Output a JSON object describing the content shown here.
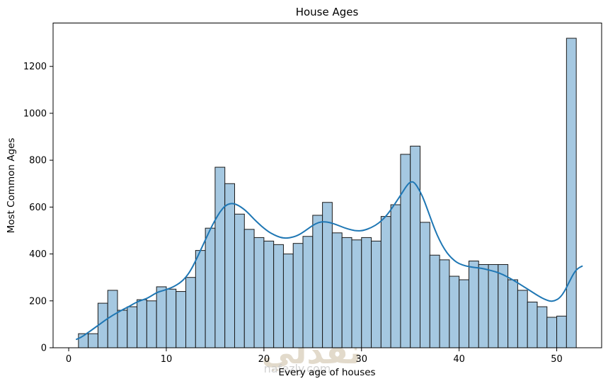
{
  "figure": {
    "title": "House Ages",
    "xlabel": "Every age of houses",
    "ylabel": "Most Common Ages"
  },
  "watermark": {
    "arabic": "نفذلي",
    "latin": "nafezly.com",
    "arabic_color": "#dcd2bf",
    "latin_color": "#c9c9c9"
  },
  "chart_data": {
    "type": "bar",
    "subtype": "histogram_with_kde",
    "title": "House Ages",
    "xlabel": "Every age of houses",
    "ylabel": "Most Common Ages",
    "bin_width": 1,
    "categories": [
      1,
      2,
      3,
      4,
      5,
      6,
      7,
      8,
      9,
      10,
      11,
      12,
      13,
      14,
      15,
      16,
      17,
      18,
      19,
      20,
      21,
      22,
      23,
      24,
      25,
      26,
      27,
      28,
      29,
      30,
      31,
      32,
      33,
      34,
      35,
      36,
      37,
      38,
      39,
      40,
      41,
      42,
      43,
      44,
      45,
      46,
      47,
      48,
      49,
      50,
      51
    ],
    "values": [
      60,
      60,
      190,
      245,
      160,
      175,
      205,
      200,
      260,
      250,
      240,
      300,
      415,
      510,
      770,
      700,
      570,
      505,
      470,
      455,
      440,
      400,
      445,
      475,
      565,
      620,
      490,
      470,
      460,
      470,
      455,
      560,
      610,
      825,
      860,
      535,
      395,
      375,
      305,
      290,
      370,
      355,
      355,
      355,
      290,
      245,
      195,
      175,
      130,
      135,
      1320
    ],
    "kde_series": {
      "name": "kde",
      "points": [
        [
          0.8,
          36
        ],
        [
          1.2,
          42
        ],
        [
          2,
          65
        ],
        [
          2.5,
          80
        ],
        [
          3,
          95
        ],
        [
          3.5,
          110
        ],
        [
          4,
          125
        ],
        [
          4.5,
          138
        ],
        [
          5,
          150
        ],
        [
          5.5,
          162
        ],
        [
          6,
          172
        ],
        [
          6.5,
          184
        ],
        [
          7,
          195
        ],
        [
          7.5,
          203
        ],
        [
          8,
          210
        ],
        [
          8.5,
          222
        ],
        [
          9,
          235
        ],
        [
          9.5,
          242
        ],
        [
          10,
          248
        ],
        [
          10.5,
          256
        ],
        [
          11,
          266
        ],
        [
          11.5,
          280
        ],
        [
          12,
          300
        ],
        [
          12.5,
          330
        ],
        [
          13,
          370
        ],
        [
          13.5,
          415
        ],
        [
          14,
          460
        ],
        [
          14.5,
          505
        ],
        [
          15,
          545
        ],
        [
          15.5,
          580
        ],
        [
          16,
          605
        ],
        [
          16.6,
          617
        ],
        [
          17.2,
          612
        ],
        [
          18,
          590
        ],
        [
          18.5,
          570
        ],
        [
          19,
          548
        ],
        [
          19.5,
          528
        ],
        [
          20,
          510
        ],
        [
          20.5,
          494
        ],
        [
          21,
          482
        ],
        [
          21.7,
          470
        ],
        [
          22.3,
          467
        ],
        [
          23,
          472
        ],
        [
          23.5,
          480
        ],
        [
          24,
          492
        ],
        [
          24.5,
          507
        ],
        [
          25,
          522
        ],
        [
          25.6,
          535
        ],
        [
          26.2,
          538
        ],
        [
          26.8,
          534
        ],
        [
          27.5,
          524
        ],
        [
          28.2,
          512
        ],
        [
          29,
          502
        ],
        [
          29.6,
          498
        ],
        [
          30.2,
          500
        ],
        [
          31,
          512
        ],
        [
          31.8,
          532
        ],
        [
          32.5,
          560
        ],
        [
          33.2,
          600
        ],
        [
          34,
          650
        ],
        [
          34.6,
          690
        ],
        [
          35,
          708
        ],
        [
          35.4,
          707
        ],
        [
          36,
          668
        ],
        [
          36.5,
          620
        ],
        [
          37,
          562
        ],
        [
          37.5,
          505
        ],
        [
          38,
          458
        ],
        [
          38.5,
          420
        ],
        [
          39,
          392
        ],
        [
          39.5,
          372
        ],
        [
          40,
          358
        ],
        [
          40.7,
          348
        ],
        [
          41.5,
          343
        ],
        [
          42.3,
          339
        ],
        [
          43,
          332
        ],
        [
          43.7,
          325
        ],
        [
          44.5,
          312
        ],
        [
          45.2,
          297
        ],
        [
          46,
          277
        ],
        [
          46.8,
          256
        ],
        [
          47.5,
          237
        ],
        [
          48.2,
          219
        ],
        [
          48.8,
          206
        ],
        [
          49.3,
          198
        ],
        [
          49.8,
          200
        ],
        [
          50.3,
          212
        ],
        [
          50.8,
          240
        ],
        [
          51.3,
          282
        ],
        [
          51.8,
          322
        ],
        [
          52.2,
          340
        ],
        [
          52.6,
          348
        ]
      ]
    },
    "xlim": [
      -1.6,
      54.6
    ],
    "ylim": [
      0,
      1385
    ],
    "xticks": [
      0,
      10,
      20,
      30,
      40,
      50
    ],
    "yticks": [
      0,
      200,
      400,
      600,
      800,
      1000,
      1200
    ],
    "grid": false,
    "legend_position": "none",
    "bar_fill": "#a5c8e1",
    "bar_edge": "#1a1a1a",
    "kde_color": "#1f77b4",
    "text_color": "#000000"
  }
}
